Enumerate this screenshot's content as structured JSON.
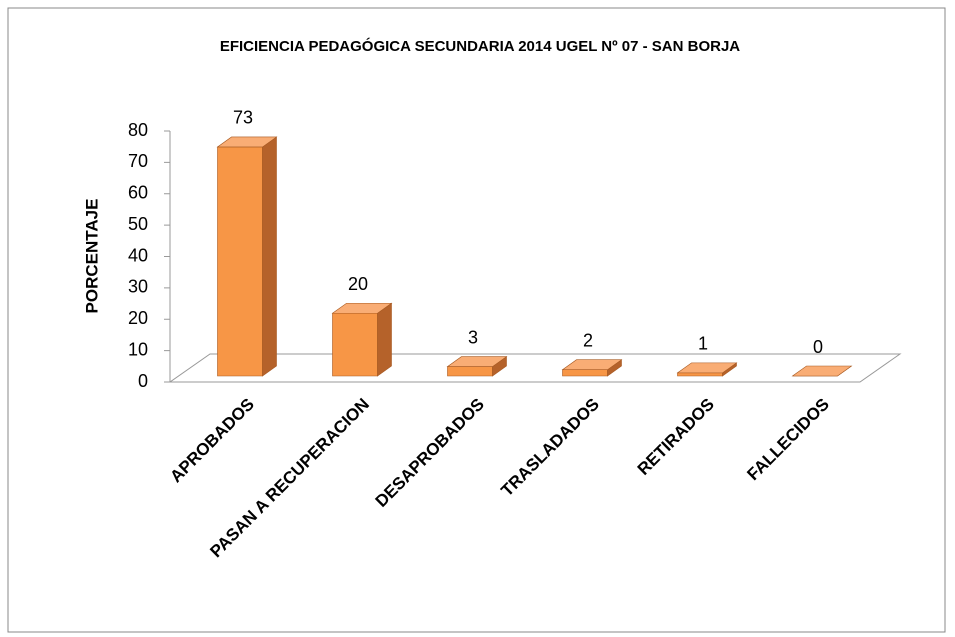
{
  "chart_data": {
    "type": "bar",
    "title": "EFICIENCIA PEDAGÓGICA SECUNDARIA 2014 UGEL Nº 07 - SAN BORJA",
    "y_label": "PORCENTAJE",
    "categories": [
      "APROBADOS",
      "PASAN A RECUPERACION",
      "DESAPROBADOS",
      "TRASLADADOS",
      "RETIRADOS",
      "FALLECIDOS"
    ],
    "values": [
      73,
      20,
      3,
      2,
      1,
      0
    ],
    "color": "#f79646",
    "ylim": [
      0,
      80
    ],
    "yticks": [
      0,
      10,
      20,
      30,
      40,
      50,
      60,
      70,
      80
    ]
  }
}
